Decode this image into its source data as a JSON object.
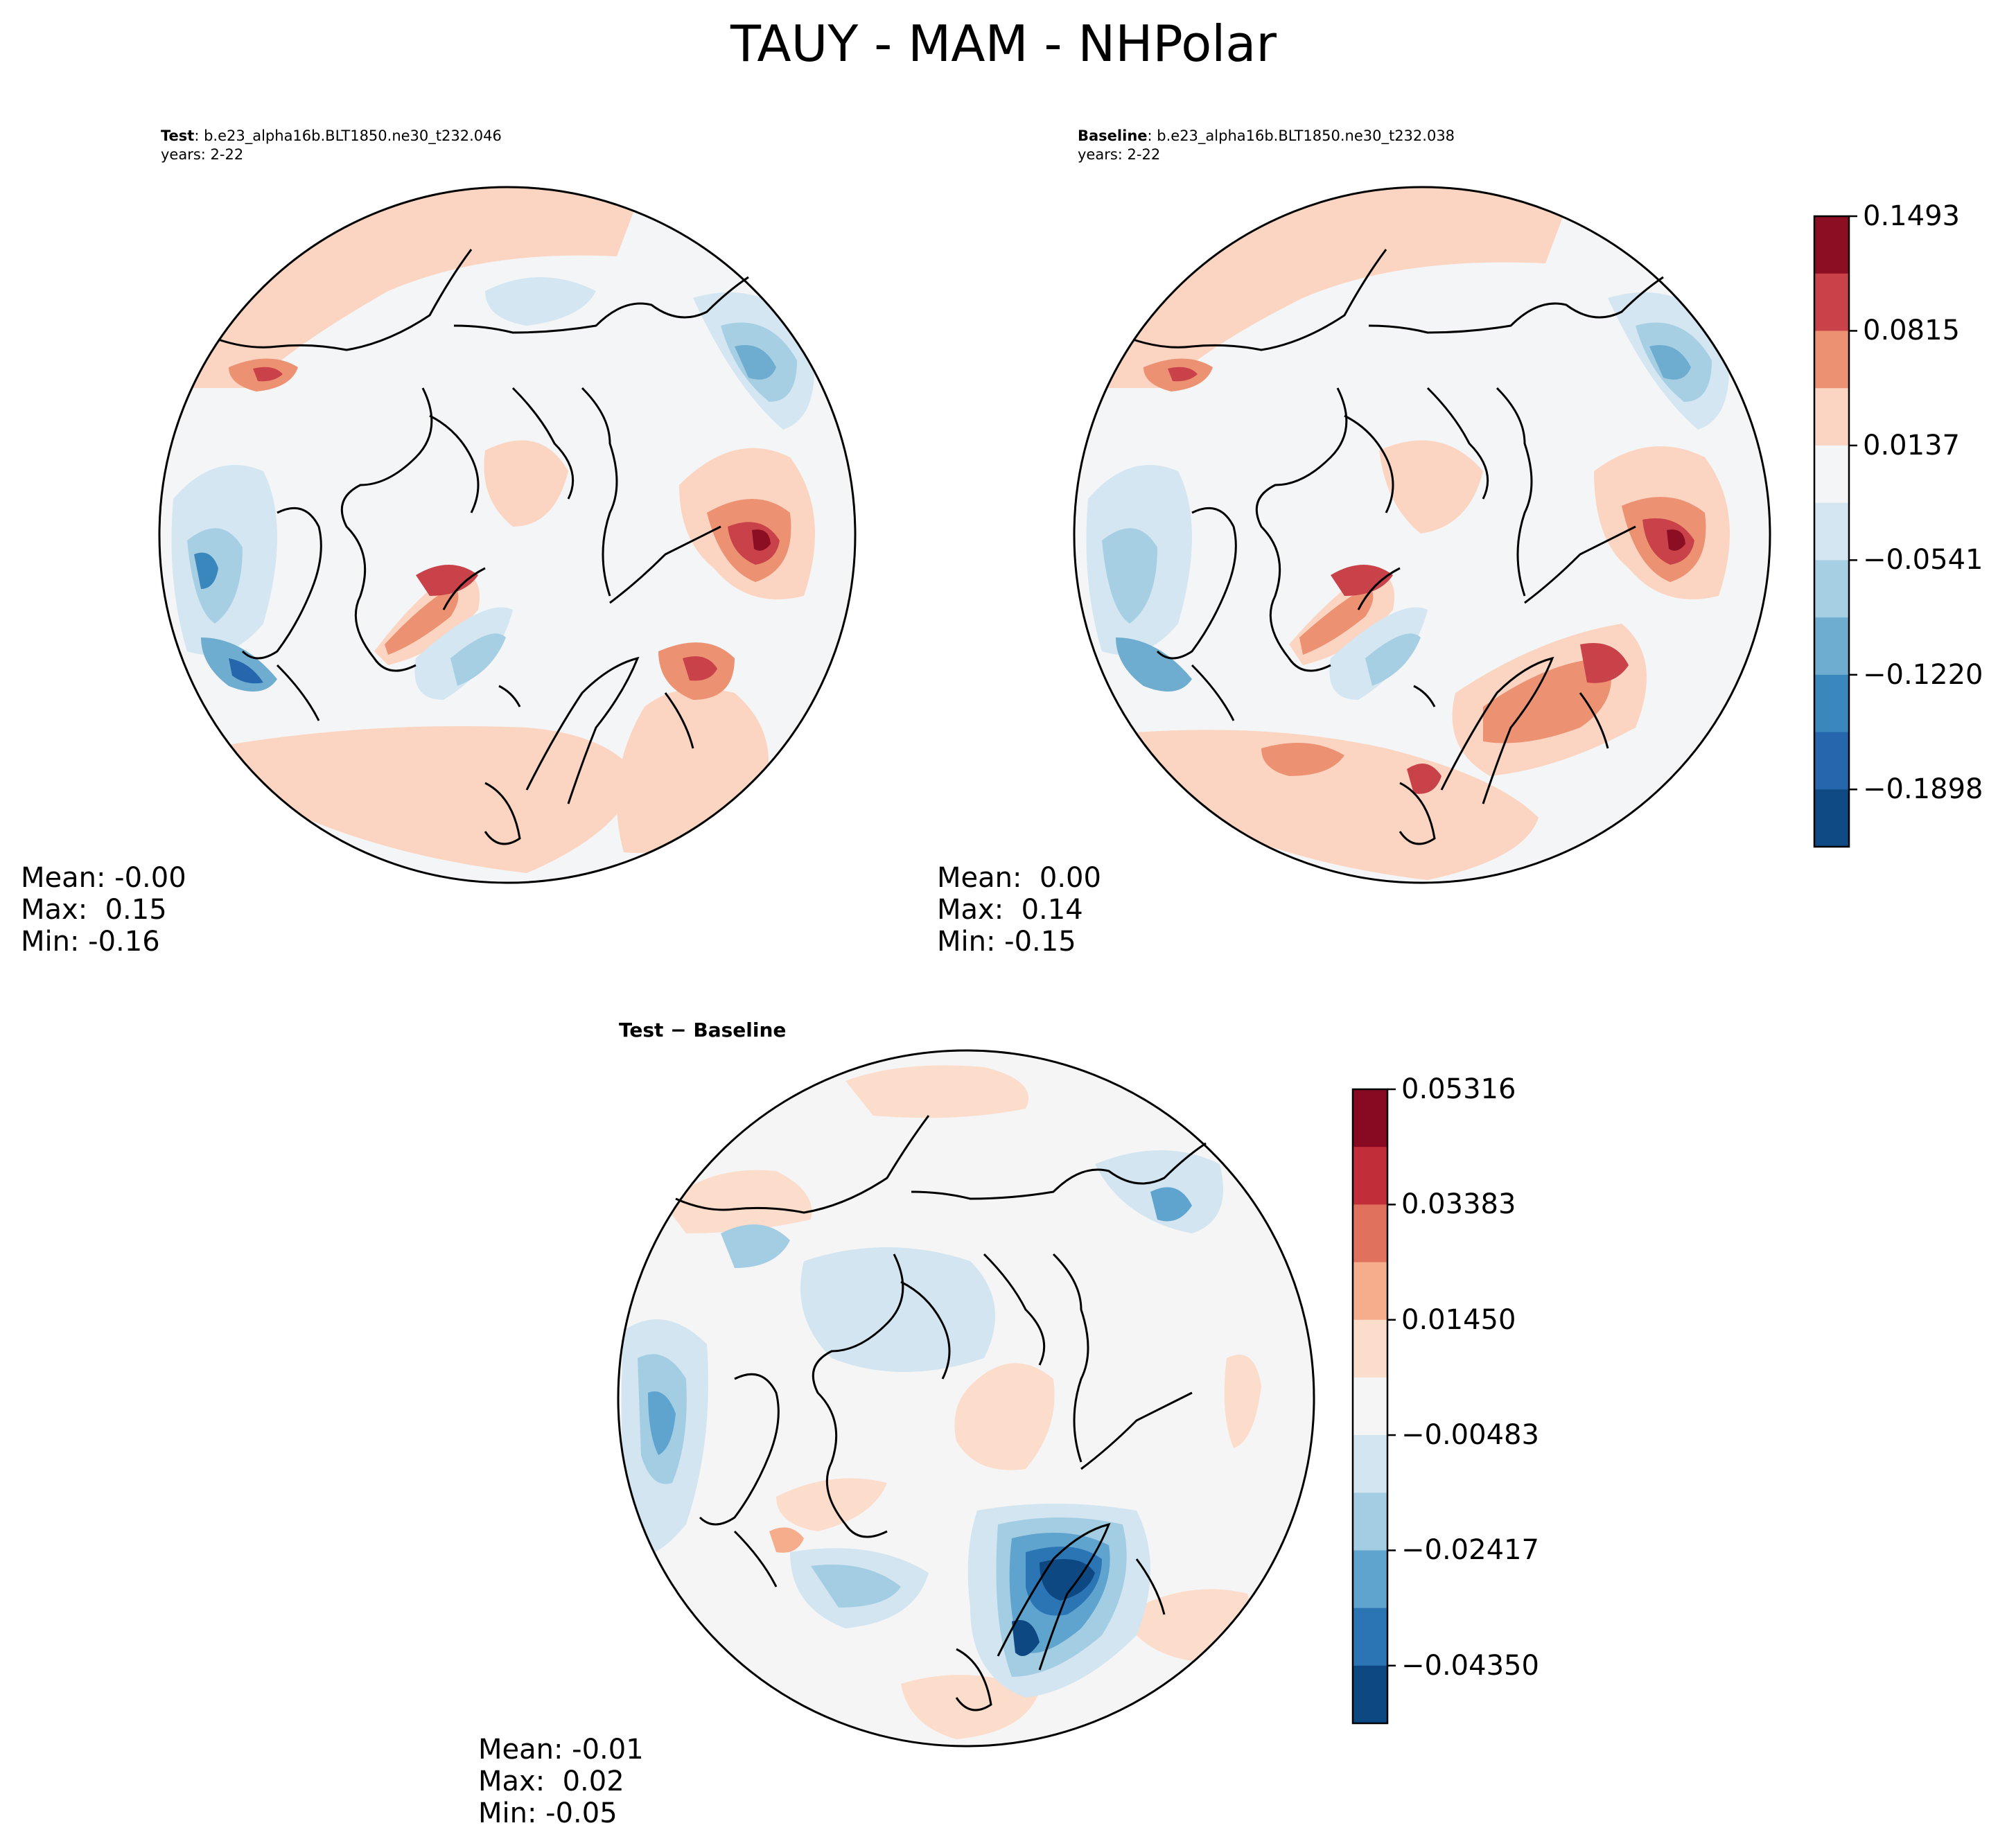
{
  "figure": {
    "title": "TAUY - MAM - NHPolar"
  },
  "panels": {
    "test": {
      "label": "Test",
      "case": ": b.e23_alpha16b.BLT1850.ne30_t232.046",
      "years": "years: 2-22",
      "stats": {
        "mean": "Mean: -0.00",
        "max": "Max:  0.15",
        "min": "Min: -0.16"
      }
    },
    "baseline": {
      "label": "Baseline",
      "case": ": b.e23_alpha16b.BLT1850.ne30_t232.038",
      "years": "years: 2-22",
      "stats": {
        "mean": "Mean:  0.00",
        "max": "Max:  0.14",
        "min": "Min: -0.15"
      }
    },
    "diff": {
      "title": "Test − Baseline",
      "stats": {
        "mean": "Mean: -0.01",
        "max": "Max:  0.02",
        "min": "Min: -0.05"
      }
    }
  },
  "colorbars": {
    "main": {
      "ticks": [
        "0.1493",
        "0.0815",
        "0.0137",
        "−0.0541",
        "−0.1220",
        "−0.1898"
      ],
      "colors_top_to_bottom": [
        "#8b0e23",
        "#c9424a",
        "#ec9273",
        "#fbd5c2",
        "#f4f5f6",
        "#d4e6f1",
        "#a7cfe4",
        "#6fadd0",
        "#3a87bd",
        "#2566ac",
        "#0f4a84"
      ]
    },
    "diff": {
      "ticks": [
        "0.05316",
        "0.03383",
        "0.01450",
        "−0.00483",
        "−0.02417",
        "−0.04350"
      ],
      "colors_top_to_bottom": [
        "#870a22",
        "#c12d38",
        "#e0715d",
        "#f6ad8c",
        "#fcdccb",
        "#f5f5f5",
        "#d3e5f1",
        "#a3cde3",
        "#5fa3cf",
        "#2c75b5",
        "#0e4882"
      ]
    }
  }
}
